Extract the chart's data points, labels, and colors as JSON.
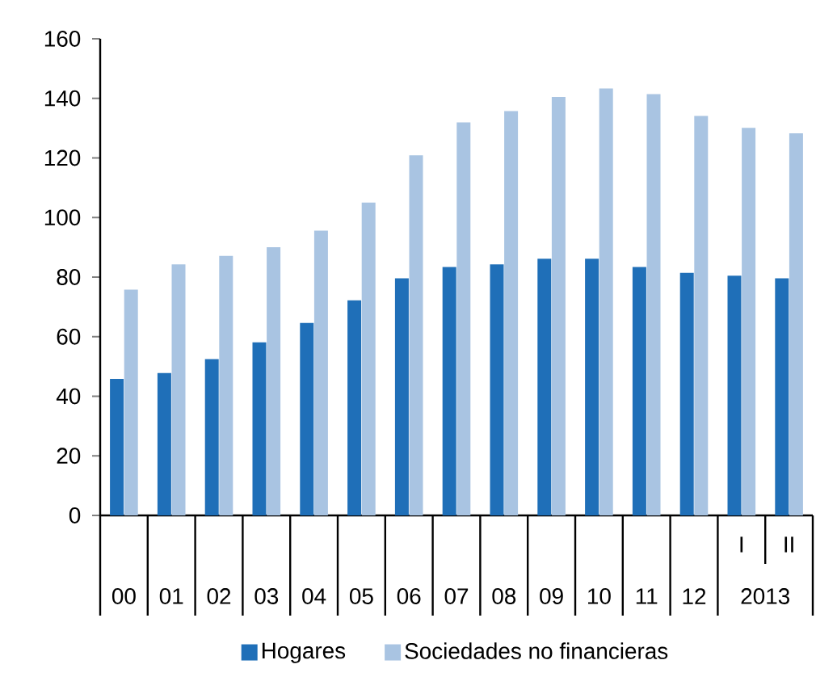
{
  "chart_data": {
    "type": "bar",
    "categories": [
      "00",
      "01",
      "02",
      "03",
      "04",
      "05",
      "06",
      "07",
      "08",
      "09",
      "10",
      "11",
      "12",
      "I",
      "II"
    ],
    "series": [
      {
        "name": "Hogares",
        "color": "#1f6fb8",
        "values": [
          45.8,
          47.8,
          52.5,
          58.1,
          64.6,
          72.2,
          79.6,
          83.4,
          84.3,
          86.2,
          86.2,
          83.4,
          81.4,
          80.5,
          79.6
        ]
      },
      {
        "name": "Sociedades no financieras",
        "color": "#a9c4e2",
        "values": [
          75.8,
          84.3,
          87.1,
          90.0,
          95.6,
          105.0,
          120.9,
          131.9,
          135.7,
          140.5,
          143.3,
          141.4,
          134.1,
          130.1,
          128.3
        ]
      }
    ],
    "annotations": [
      "2013"
    ],
    "ylim": [
      0,
      160
    ],
    "yticks": [
      0,
      20,
      40,
      60,
      80,
      100,
      120,
      140,
      160
    ],
    "grid": false,
    "legend": "bottom"
  }
}
